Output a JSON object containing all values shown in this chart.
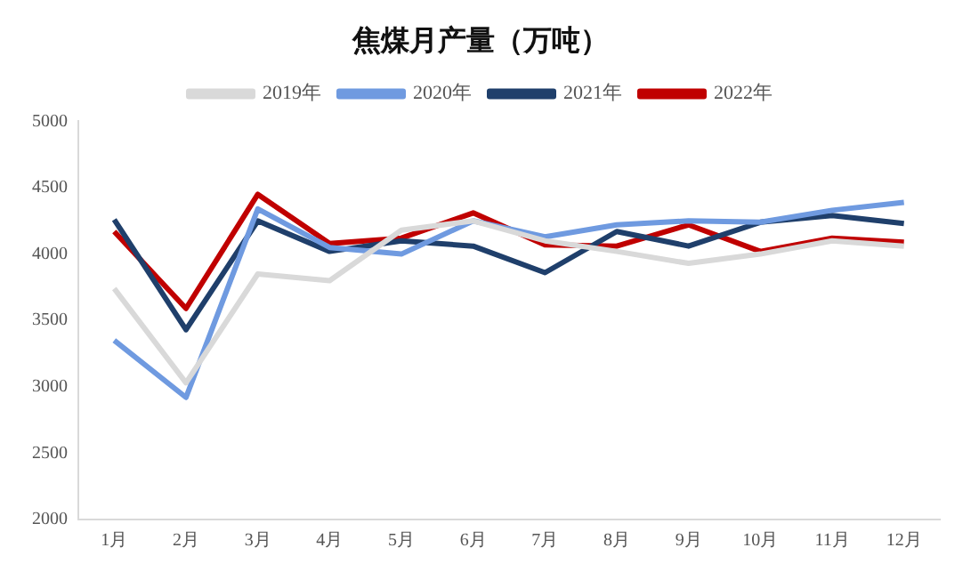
{
  "chart_data": {
    "type": "line",
    "title": "焦煤月产量（万吨）",
    "categories": [
      "1月",
      "2月",
      "3月",
      "4月",
      "5月",
      "6月",
      "7月",
      "8月",
      "9月",
      "10月",
      "11月",
      "12月"
    ],
    "series": [
      {
        "name": "2019年",
        "color": "#d9d9d9",
        "values": [
          3740,
          3030,
          3850,
          3800,
          4180,
          4250,
          4100,
          4020,
          3930,
          4000,
          4100,
          4060
        ]
      },
      {
        "name": "2020年",
        "color": "#6f9ae0",
        "values": [
          3350,
          2920,
          4340,
          4050,
          4000,
          4250,
          4130,
          4220,
          4250,
          4240,
          4330,
          4390
        ]
      },
      {
        "name": "2021年",
        "color": "#1f3f6b",
        "values": [
          4260,
          3430,
          4250,
          4020,
          4100,
          4060,
          3860,
          4170,
          4060,
          4240,
          4290,
          4230
        ]
      },
      {
        "name": "2022年",
        "color": "#c00000",
        "values": [
          4170,
          3590,
          4450,
          4080,
          4120,
          4310,
          4070,
          4060,
          4220,
          4020,
          4120,
          4090
        ]
      }
    ],
    "ylim": [
      2000,
      5000
    ],
    "yticks": [
      2000,
      2500,
      3000,
      3500,
      4000,
      4500,
      5000
    ],
    "grid": false,
    "legend": "top",
    "marker": "none",
    "line_style": "solid"
  }
}
